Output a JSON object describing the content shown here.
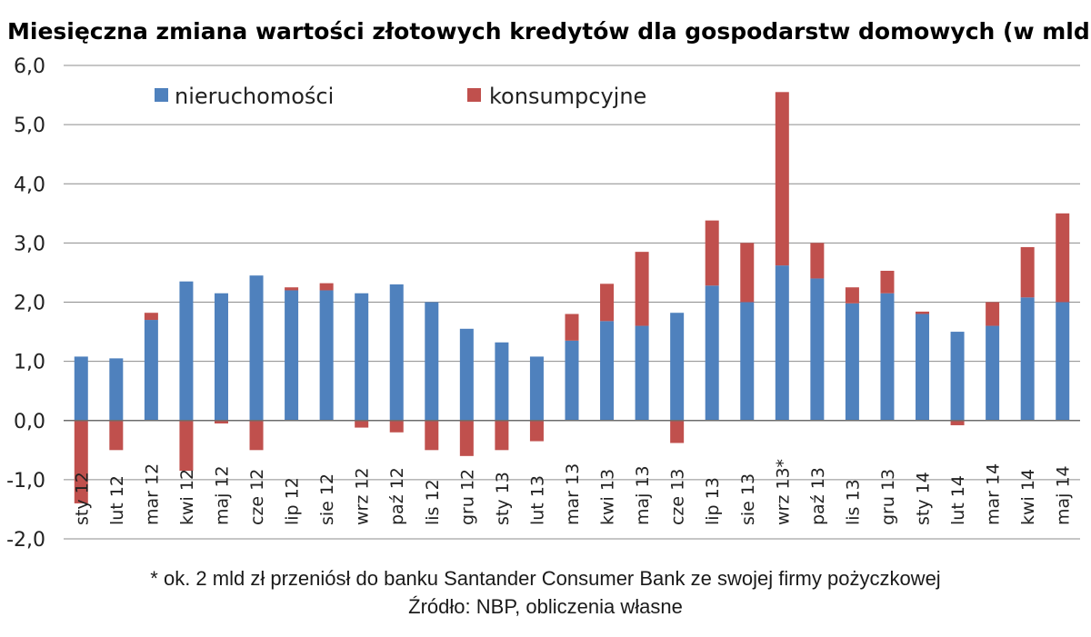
{
  "chart_data": {
    "type": "bar",
    "stacked": true,
    "title": "Miesięczna zmiana wartości złotowych kredytów dla gospodarstw domowych (w mld zł)",
    "categories": [
      "sty 12",
      "lut 12",
      "mar 12",
      "kwi 12",
      "maj 12",
      "cze 12",
      "lip 12",
      "sie 12",
      "wrz 12",
      "paź 12",
      "lis 12",
      "gru 12",
      "sty 13",
      "lut 13",
      "mar 13",
      "kwi 13",
      "maj 13",
      "cze 13",
      "lip 13",
      "sie 13",
      "wrz 13*",
      "paź 13",
      "lis 13",
      "gru 13",
      "sty 14",
      "lut 14",
      "mar 14",
      "kwi 14",
      "maj 14"
    ],
    "series": [
      {
        "name": "nieruchomości",
        "color": "#4f81bd",
        "values": [
          1.08,
          1.05,
          1.7,
          2.35,
          2.15,
          2.45,
          2.2,
          2.2,
          2.15,
          2.3,
          2.0,
          1.55,
          1.32,
          1.08,
          1.35,
          1.68,
          1.6,
          1.82,
          2.28,
          2.0,
          2.62,
          2.4,
          1.98,
          2.15,
          1.8,
          1.5,
          1.6,
          2.08,
          2.0
        ]
      },
      {
        "name": "konsumpcyjne",
        "color": "#c0504d",
        "values": [
          -1.4,
          -0.5,
          0.12,
          -0.85,
          -0.05,
          -0.5,
          0.05,
          0.12,
          -0.12,
          -0.2,
          -0.5,
          -0.6,
          -0.5,
          -0.35,
          0.45,
          0.63,
          1.25,
          -0.38,
          1.1,
          1.0,
          2.93,
          0.6,
          0.27,
          0.38,
          0.04,
          -0.08,
          0.4,
          0.85,
          1.5
        ]
      }
    ],
    "ylim": [
      -2.0,
      6.0
    ],
    "yticks": [
      "-2,0",
      "-1,0",
      "0,0",
      "1,0",
      "2,0",
      "3,0",
      "4,0",
      "5,0",
      "6,0"
    ],
    "grid": true,
    "legend": "top-left"
  },
  "footnote": "* ok. 2 mld zł przeniósł do banku Santander Consumer Bank ze swojej firmy pożyczkowej",
  "source": "Źródło: NBP, obliczenia własne"
}
